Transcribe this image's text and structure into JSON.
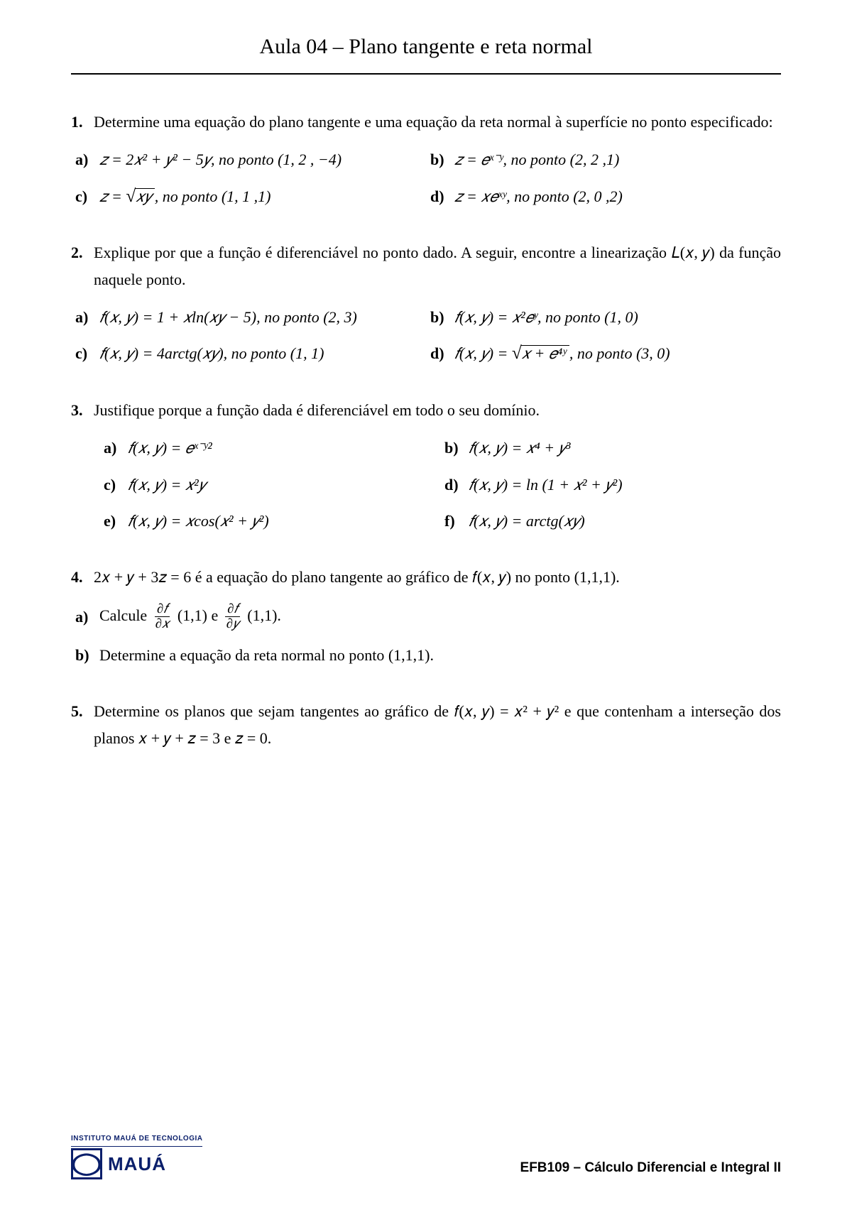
{
  "title": "Aula 04 – Plano tangente e reta normal",
  "p1": {
    "prompt": "Determine uma equação do plano tangente e uma equação da reta normal à superfície no ponto especificado:",
    "a": "𝑧 = 2𝑥² + 𝑦² − 5𝑦, no ponto (1, 2 , −4)",
    "b": "𝑧 =  𝑒ˣ⁻ʸ, no ponto (2, 2 ,1)",
    "c_pre": "𝑧 = ",
    "c_rad": "𝑥𝑦",
    "c_post": ", no ponto (1, 1 ,1)",
    "d": "𝑧 = 𝑥𝑒ˣʸ, no ponto (2, 0 ,2)"
  },
  "p2": {
    "prompt": "Explique por que a função é diferenciável no ponto dado. A seguir, encontre a linearização 𝐿(𝑥, 𝑦) da função naquele ponto.",
    "a": "𝑓(𝑥, 𝑦) = 1 + 𝑥ln(𝑥𝑦 − 5), no ponto (2, 3)",
    "b": "𝑓(𝑥, 𝑦) = 𝑥²𝑒ʸ, no ponto (1, 0)",
    "c": "𝑓(𝑥, 𝑦) =  4arctg(𝑥𝑦), no ponto (1, 1)",
    "d_pre": "𝑓(𝑥, 𝑦) = ",
    "d_rad": "𝑥 + 𝑒⁴ʸ",
    "d_post": ", no ponto (3, 0)"
  },
  "p3": {
    "prompt": "Justifique porque a função dada é diferenciável em todo o seu domínio.",
    "a": "𝑓(𝑥, 𝑦) =  𝑒ˣ⁻ʸ²",
    "b": "𝑓(𝑥, 𝑦) =  𝑥⁴ +  𝑦³",
    "c": "𝑓(𝑥, 𝑦) =  𝑥²𝑦",
    "d": "𝑓(𝑥, 𝑦) =  ln (1 + 𝑥² + 𝑦²)",
    "e": "𝑓(𝑥, 𝑦) =  𝑥cos(𝑥² + 𝑦²)",
    "f": "𝑓(𝑥, 𝑦) =  arctg(𝑥𝑦)"
  },
  "p4": {
    "prompt_math": "2𝑥 + 𝑦 + 3𝑧 = 6 é a equação do plano tangente ao gráfico de 𝑓(𝑥, 𝑦) no ponto (1,1,1).",
    "a_pre": "Calcule ",
    "a_mid": "(1,1) e ",
    "a_post": "(1,1).",
    "df": "∂𝑓",
    "dx": "∂𝑥",
    "dy": "∂𝑦",
    "b": "Determine a equação da reta normal no ponto (1,1,1)."
  },
  "p5": {
    "prompt": "Determine os planos que sejam tangentes ao gráfico de 𝑓(𝑥, 𝑦) = 𝑥² + 𝑦²  e que contenham a interseção dos planos 𝑥 + 𝑦 + 𝑧 = 3  e 𝑧 = 0."
  },
  "footer": {
    "inst": "INSTITUTO MAUÁ DE TECNOLOGIA",
    "brand": "MAUÁ",
    "course": "EFB109 – Cálculo Diferencial e Integral II"
  },
  "labels": {
    "a": "a)",
    "b": "b)",
    "c": "c)",
    "d": "d)",
    "e": "e)",
    "f": "f)",
    "n1": "1.",
    "n2": "2.",
    "n3": "3.",
    "n4": "4.",
    "n5": "5."
  }
}
